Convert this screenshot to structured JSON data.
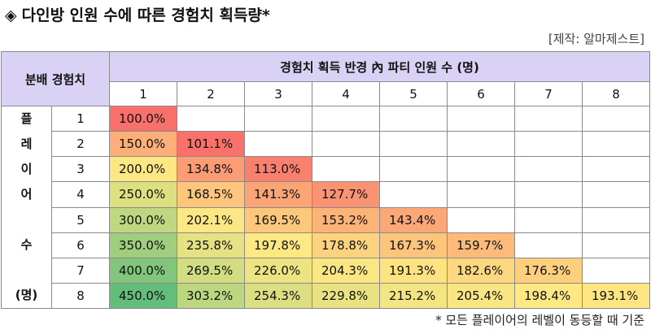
{
  "title": "다인방 인원 수에 따른 경험치 획득량*",
  "title_icon": "diamond-icon",
  "source": "[제작: 알마제스트]",
  "footnote": "* 모든 플레이어의 레벨이 동등할 때 기준",
  "table": {
    "corner_label": "분배 경험치",
    "column_group_label": "경험치 획득 반경 內 파티 인원 수 (명)",
    "row_group_label": [
      "플",
      "레",
      "이",
      "어",
      "",
      "수",
      "",
      "(명)"
    ],
    "columns": [
      "1",
      "2",
      "3",
      "4",
      "5",
      "6",
      "7",
      "8"
    ],
    "rows": [
      {
        "label": "1",
        "values": [
          "100.0%"
        ]
      },
      {
        "label": "2",
        "values": [
          "150.0%",
          "101.1%"
        ]
      },
      {
        "label": "3",
        "values": [
          "200.0%",
          "134.8%",
          "113.0%"
        ]
      },
      {
        "label": "4",
        "values": [
          "250.0%",
          "168.5%",
          "141.3%",
          "127.7%"
        ]
      },
      {
        "label": "5",
        "values": [
          "300.0%",
          "202.1%",
          "169.5%",
          "153.2%",
          "143.4%"
        ]
      },
      {
        "label": "6",
        "values": [
          "350.0%",
          "235.8%",
          "197.8%",
          "178.8%",
          "167.3%",
          "159.7%"
        ]
      },
      {
        "label": "7",
        "values": [
          "400.0%",
          "269.5%",
          "226.0%",
          "204.3%",
          "191.3%",
          "182.6%",
          "176.3%"
        ]
      },
      {
        "label": "8",
        "values": [
          "450.0%",
          "303.2%",
          "254.3%",
          "229.8%",
          "215.2%",
          "205.4%",
          "198.4%",
          "193.1%"
        ]
      }
    ]
  },
  "colors": {
    "header_bg": "#d9d2f4",
    "scale_low": "#f8706b",
    "scale_mid": "#ffe883",
    "scale_high": "#63be7b"
  }
}
